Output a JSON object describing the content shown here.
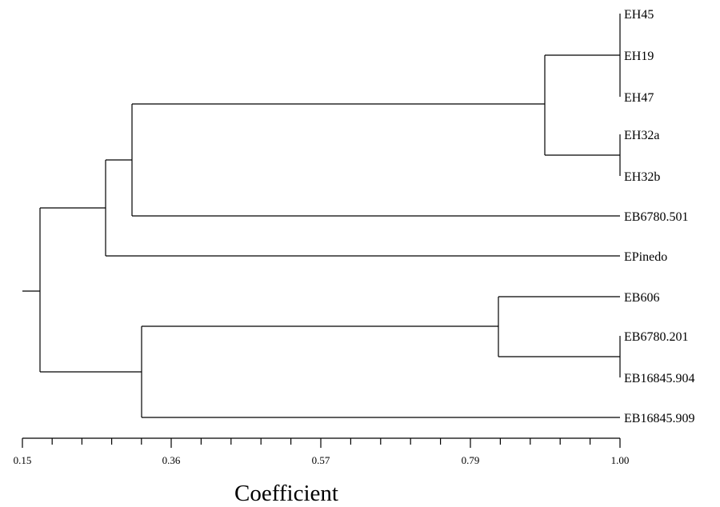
{
  "axis": {
    "title": "Coefficient",
    "tick_labels": [
      "0.15",
      "0.36",
      "0.57",
      "0.79",
      "1.00"
    ]
  },
  "leaves": [
    "EH45",
    "EH19",
    "EH47",
    "EH32a",
    "EH32b",
    "EB6780.501",
    "EPinedo",
    "EB606",
    "EB6780.201",
    "EB16845.904",
    "EB16845.909"
  ]
}
